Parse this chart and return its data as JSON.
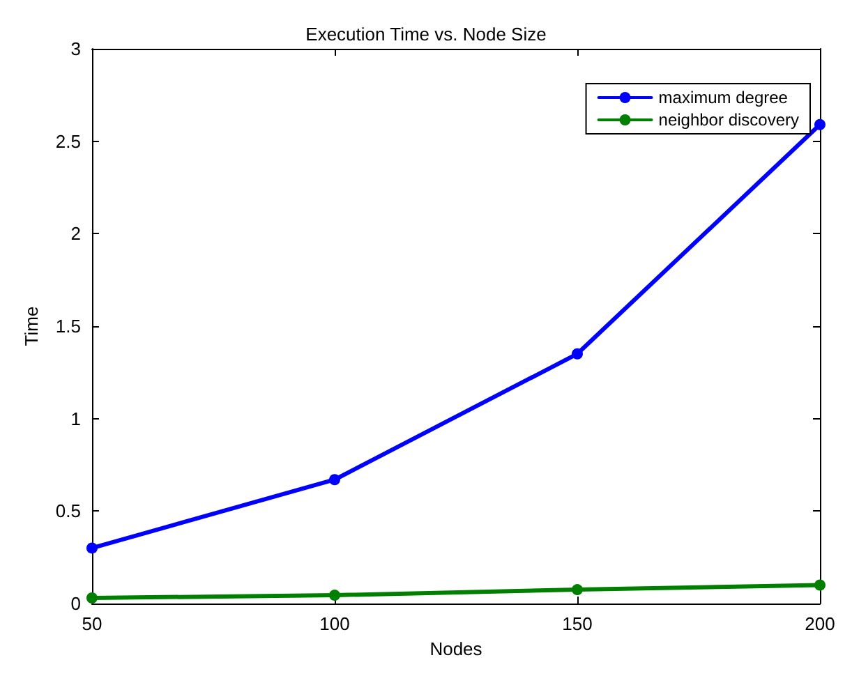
{
  "chart_data": {
    "type": "line",
    "title": "Execution Time vs. Node Size",
    "xlabel": "Nodes",
    "ylabel": "Time",
    "x": [
      50,
      100,
      150,
      200
    ],
    "series": [
      {
        "name": "maximum degree",
        "color": "#0000ff",
        "values": [
          0.3,
          0.67,
          1.35,
          2.59
        ]
      },
      {
        "name": "neighbor discovery",
        "color": "#007f00",
        "values": [
          0.03,
          0.045,
          0.075,
          0.1
        ]
      }
    ],
    "xlim": [
      50,
      200
    ],
    "xticks": [
      50,
      100,
      150,
      200
    ],
    "ylim": [
      0,
      3
    ],
    "yticks": [
      0,
      0.5,
      1,
      1.5,
      2,
      2.5,
      3
    ],
    "grid": false,
    "legend": "top right",
    "marker": "circle",
    "line_style": "solid"
  }
}
